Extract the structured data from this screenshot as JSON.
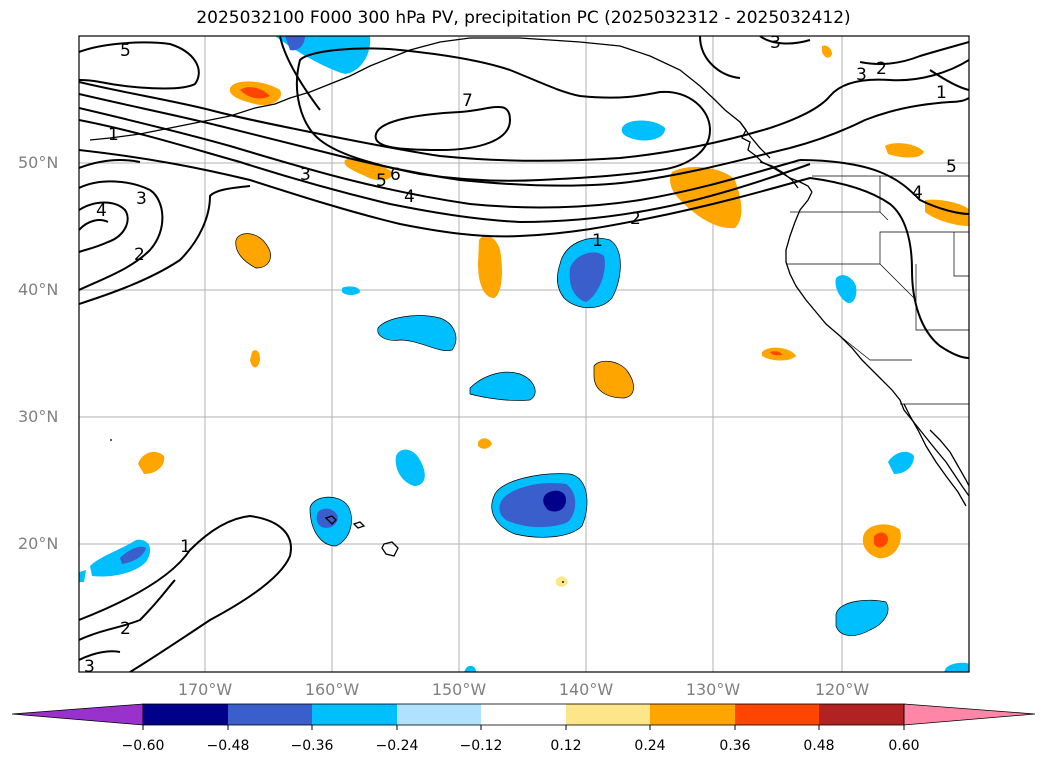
{
  "figure": {
    "title": "2025032100 F000 300 hPa PV, precipitation PC (2025032312 - 2025032412)"
  },
  "map": {
    "latitude_labels": [
      "50°N",
      "40°N",
      "30°N",
      "20°N"
    ],
    "longitude_labels": [
      "170°W",
      "160°W",
      "150°W",
      "140°W",
      "130°W",
      "120°W"
    ],
    "pv_contour_labels": [
      "5",
      "1",
      "3",
      "4",
      "2",
      "7",
      "5",
      "6",
      "4",
      "3",
      "2",
      "1",
      "2",
      "3",
      "1",
      "5",
      "4",
      "3",
      "1",
      "2",
      "3"
    ]
  },
  "colorbar": {
    "tick_labels": [
      "−0.60",
      "−0.48",
      "−0.36",
      "−0.24",
      "−0.12",
      "0.12",
      "0.24",
      "0.36",
      "0.48",
      "0.60"
    ],
    "colors": [
      "#9932cc",
      "#00008b",
      "#3a5fcd",
      "#00bfff",
      "#b0e2ff",
      "#ffffff",
      "#fde68a",
      "#ffa500",
      "#ff4500",
      "#b22222",
      "#ff86a6"
    ]
  }
}
